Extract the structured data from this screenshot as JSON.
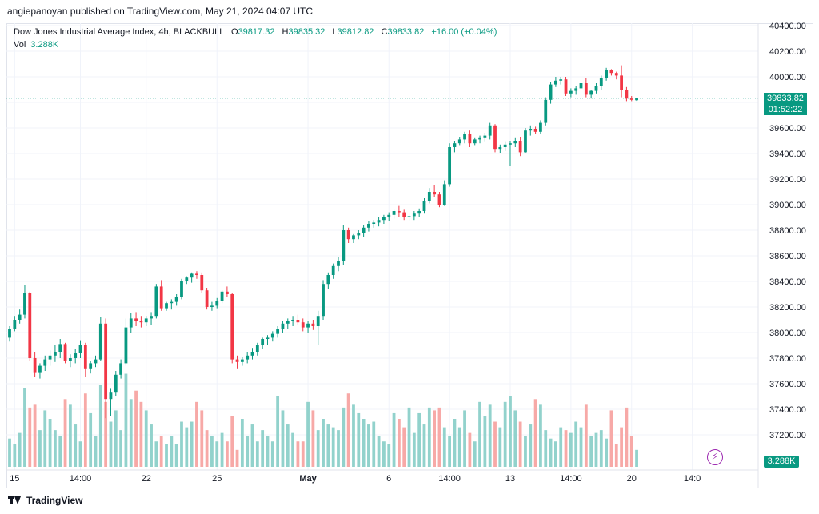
{
  "header": {
    "published": "angiepanoyan published on TradingView.com, May 21, 2024 04:07 UTC"
  },
  "legend": {
    "title": "Dow Jones Industrial Average Index, 4h, BLACKBULL",
    "o_label": "O",
    "o": "39817.32",
    "h_label": "H",
    "h": "39835.32",
    "l_label": "L",
    "l": "39812.82",
    "c_label": "C",
    "c": "39833.82",
    "change": "+16.00 (+0.04%)"
  },
  "volume_legend": {
    "label": "Vol",
    "value": "3.288K"
  },
  "price_tag": {
    "price": "39833.82",
    "countdown": "01:52:22"
  },
  "volume_tag": "3.288K",
  "footer": {
    "brand": "TradingView"
  },
  "colors": {
    "up": "#089981",
    "down": "#f23645",
    "vol_up": "#92d2cc",
    "vol_down": "#f7a9a7"
  },
  "chart_data": {
    "type": "candlestick",
    "ylim": [
      37000,
      40400
    ],
    "y_ticks": [
      37200,
      37400,
      37600,
      37800,
      38000,
      38200,
      38400,
      38600,
      38800,
      39000,
      39200,
      39400,
      39600,
      39800,
      40000,
      40200,
      40400
    ],
    "x_ticks": [
      {
        "label": "15",
        "index": 1
      },
      {
        "label": "14:00",
        "index": 14
      },
      {
        "label": "22",
        "index": 27
      },
      {
        "label": "25",
        "index": 41
      },
      {
        "label": "May",
        "index": 59
      },
      {
        "label": "6",
        "index": 75
      },
      {
        "label": "14:00",
        "index": 87
      },
      {
        "label": "13",
        "index": 99
      },
      {
        "label": "14:00",
        "index": 111
      },
      {
        "label": "20",
        "index": 123
      },
      {
        "label": "14:0",
        "index": 135
      }
    ],
    "candles": [
      [
        37960,
        38050,
        37930,
        38030,
        100
      ],
      [
        38030,
        38130,
        38010,
        38100,
        80
      ],
      [
        38100,
        38180,
        38070,
        38140,
        120
      ],
      [
        38140,
        38370,
        38110,
        38310,
        280
      ],
      [
        38310,
        38320,
        37780,
        37800,
        210
      ],
      [
        37800,
        37850,
        37650,
        37690,
        220
      ],
      [
        37690,
        37760,
        37640,
        37740,
        130
      ],
      [
        37740,
        37820,
        37700,
        37790,
        200
      ],
      [
        37790,
        37860,
        37740,
        37820,
        170
      ],
      [
        37820,
        37900,
        37770,
        37850,
        130
      ],
      [
        37850,
        37950,
        37800,
        37910,
        110
      ],
      [
        37910,
        37920,
        37760,
        37780,
        240
      ],
      [
        37780,
        37830,
        37730,
        37800,
        220
      ],
      [
        37800,
        37870,
        37760,
        37840,
        150
      ],
      [
        37840,
        37940,
        37800,
        37900,
        90
      ],
      [
        37900,
        37920,
        37650,
        37720,
        260
      ],
      [
        37720,
        37780,
        37680,
        37760,
        190
      ],
      [
        37760,
        37820,
        37730,
        37790,
        110
      ],
      [
        37790,
        38120,
        37780,
        38070,
        290
      ],
      [
        38070,
        38110,
        37330,
        37480,
        230
      ],
      [
        37480,
        37560,
        37350,
        37530,
        160
      ],
      [
        37530,
        37700,
        37500,
        37670,
        200
      ],
      [
        37670,
        37790,
        37640,
        37760,
        130
      ],
      [
        37760,
        38110,
        37740,
        38040,
        330
      ],
      [
        38040,
        38150,
        38000,
        38110,
        240
      ],
      [
        38110,
        38160,
        38050,
        38090,
        270
      ],
      [
        38090,
        38130,
        38040,
        38080,
        230
      ],
      [
        38080,
        38130,
        38050,
        38110,
        200
      ],
      [
        38110,
        38160,
        38060,
        38130,
        150
      ],
      [
        38130,
        38380,
        38110,
        38360,
        90
      ],
      [
        38360,
        38410,
        38170,
        38190,
        110
      ],
      [
        38190,
        38240,
        38170,
        38230,
        80
      ],
      [
        38230,
        38260,
        38180,
        38240,
        110
      ],
      [
        38240,
        38300,
        38210,
        38280,
        80
      ],
      [
        38280,
        38420,
        38260,
        38400,
        160
      ],
      [
        38400,
        38440,
        38380,
        38430,
        140
      ],
      [
        38430,
        38470,
        38390,
        38460,
        160
      ],
      [
        38460,
        38480,
        38420,
        38450,
        230
      ],
      [
        38450,
        38470,
        38310,
        38330,
        200
      ],
      [
        38330,
        38350,
        38180,
        38200,
        130
      ],
      [
        38200,
        38240,
        38170,
        38210,
        110
      ],
      [
        38210,
        38270,
        38190,
        38250,
        90
      ],
      [
        38250,
        38330,
        38230,
        38320,
        120
      ],
      [
        38320,
        38360,
        38280,
        38300,
        90
      ],
      [
        38300,
        38310,
        37760,
        37790,
        180
      ],
      [
        37790,
        37820,
        37720,
        37770,
        60
      ],
      [
        37770,
        37810,
        37740,
        37790,
        170
      ],
      [
        37790,
        37850,
        37760,
        37820,
        110
      ],
      [
        37820,
        37880,
        37790,
        37850,
        150
      ],
      [
        37850,
        37920,
        37820,
        37900,
        90
      ],
      [
        37900,
        37960,
        37870,
        37950,
        130
      ],
      [
        37950,
        37980,
        37900,
        37960,
        110
      ],
      [
        37960,
        38010,
        37930,
        37990,
        90
      ],
      [
        37990,
        38050,
        37960,
        38030,
        250
      ],
      [
        38030,
        38090,
        38000,
        38070,
        200
      ],
      [
        38070,
        38110,
        38030,
        38090,
        150
      ],
      [
        38090,
        38130,
        38050,
        38100,
        120
      ],
      [
        38100,
        38140,
        38060,
        38080,
        90
      ],
      [
        38080,
        38110,
        38010,
        38040,
        90
      ],
      [
        38040,
        38090,
        38000,
        38070,
        230
      ],
      [
        38070,
        38100,
        38020,
        38050,
        200
      ],
      [
        38050,
        38170,
        37900,
        38130,
        130
      ],
      [
        38130,
        38410,
        38100,
        38380,
        170
      ],
      [
        38380,
        38470,
        38340,
        38450,
        150
      ],
      [
        38450,
        38540,
        38420,
        38520,
        140
      ],
      [
        38520,
        38590,
        38480,
        38560,
        130
      ],
      [
        38560,
        38840,
        38530,
        38800,
        210
      ],
      [
        38800,
        38820,
        38700,
        38730,
        260
      ],
      [
        38730,
        38770,
        38700,
        38760,
        220
      ],
      [
        38760,
        38800,
        38730,
        38780,
        190
      ],
      [
        38780,
        38840,
        38750,
        38820,
        170
      ],
      [
        38820,
        38870,
        38790,
        38850,
        150
      ],
      [
        38850,
        38880,
        38820,
        38860,
        160
      ],
      [
        38860,
        38900,
        38830,
        38880,
        110
      ],
      [
        38880,
        38920,
        38850,
        38900,
        90
      ],
      [
        38900,
        38940,
        38870,
        38920,
        80
      ],
      [
        38920,
        38960,
        38890,
        38950,
        190
      ],
      [
        38950,
        38990,
        38900,
        38940,
        170
      ],
      [
        38940,
        38960,
        38880,
        38900,
        140
      ],
      [
        38900,
        38930,
        38870,
        38910,
        210
      ],
      [
        38910,
        38950,
        38880,
        38930,
        120
      ],
      [
        38930,
        38970,
        38900,
        38950,
        190
      ],
      [
        38950,
        39050,
        38930,
        39030,
        150
      ],
      [
        39030,
        39130,
        39010,
        39100,
        210
      ],
      [
        39100,
        39150,
        39060,
        39080,
        200
      ],
      [
        39080,
        39100,
        38980,
        39000,
        210
      ],
      [
        39000,
        39190,
        38990,
        39160,
        140
      ],
      [
        39160,
        39480,
        39140,
        39450,
        110
      ],
      [
        39450,
        39500,
        39410,
        39480,
        170
      ],
      [
        39480,
        39530,
        39460,
        39510,
        140
      ],
      [
        39510,
        39570,
        39480,
        39550,
        200
      ],
      [
        39550,
        39580,
        39450,
        39480,
        120
      ],
      [
        39480,
        39520,
        39460,
        39510,
        90
      ],
      [
        39510,
        39540,
        39480,
        39520,
        230
      ],
      [
        39520,
        39560,
        39490,
        39540,
        180
      ],
      [
        39540,
        39640,
        39510,
        39620,
        220
      ],
      [
        39620,
        39630,
        39410,
        39430,
        160
      ],
      [
        39430,
        39470,
        39400,
        39450,
        140
      ],
      [
        39450,
        39490,
        39420,
        39470,
        230
      ],
      [
        39470,
        39500,
        39300,
        39480,
        250
      ],
      [
        39480,
        39520,
        39450,
        39500,
        200
      ],
      [
        39500,
        39530,
        39380,
        39410,
        160
      ],
      [
        39410,
        39600,
        39400,
        39580,
        110
      ],
      [
        39580,
        39620,
        39540,
        39590,
        150
      ],
      [
        39590,
        39610,
        39550,
        39570,
        240
      ],
      [
        39570,
        39660,
        39550,
        39640,
        220
      ],
      [
        39640,
        39840,
        39620,
        39820,
        130
      ],
      [
        39820,
        39960,
        39790,
        39940,
        100
      ],
      [
        39940,
        40000,
        39920,
        39970,
        90
      ],
      [
        39970,
        40000,
        39940,
        39980,
        140
      ],
      [
        39980,
        40000,
        39850,
        39870,
        130
      ],
      [
        39870,
        39910,
        39840,
        39890,
        120
      ],
      [
        39890,
        39930,
        39860,
        39910,
        160
      ],
      [
        39910,
        39970,
        39880,
        39950,
        140
      ],
      [
        39950,
        39990,
        39840,
        39860,
        220
      ],
      [
        39860,
        39900,
        39830,
        39890,
        110
      ],
      [
        39890,
        39950,
        39870,
        39930,
        120
      ],
      [
        39930,
        40010,
        39900,
        39990,
        130
      ],
      [
        39990,
        40070,
        39970,
        40050,
        100
      ],
      [
        40050,
        40060,
        40010,
        40030,
        200
      ],
      [
        40030,
        40040,
        39980,
        40010,
        80
      ],
      [
        40010,
        40090,
        39840,
        39900,
        140
      ],
      [
        39900,
        39920,
        39810,
        39830,
        210
      ],
      [
        39830,
        39850,
        39810,
        39820,
        110
      ],
      [
        39817,
        39835,
        39812,
        39833,
        60
      ]
    ]
  }
}
